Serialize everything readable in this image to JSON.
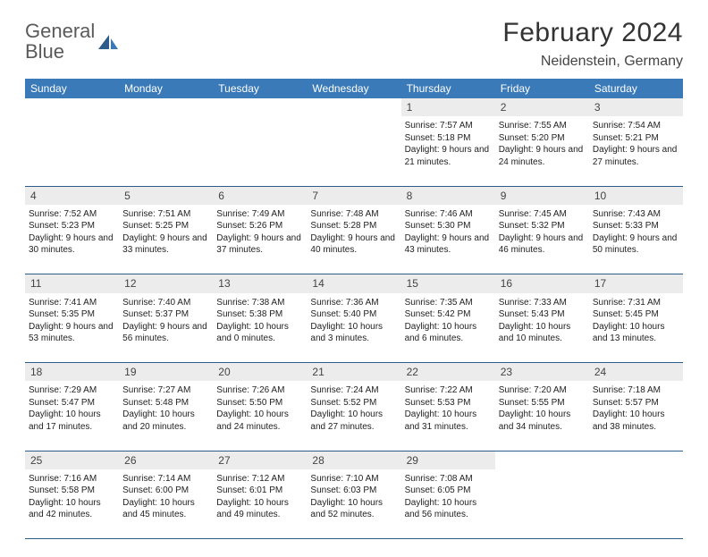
{
  "logo": {
    "word1": "General",
    "word2": "Blue"
  },
  "title": "February 2024",
  "location": "Neidenstein, Germany",
  "columns": [
    "Sunday",
    "Monday",
    "Tuesday",
    "Wednesday",
    "Thursday",
    "Friday",
    "Saturday"
  ],
  "colors": {
    "header_bg": "#3a7ab8",
    "header_text": "#ffffff",
    "daynum_bg": "#ececec",
    "rule": "#2e5c8a",
    "text": "#222222",
    "logo_gray": "#5a5a5a",
    "logo_blue": "#3a7ab8",
    "page_bg": "#ffffff"
  },
  "fonts": {
    "title_pt": 30,
    "location_pt": 16,
    "header_pt": 12,
    "daynum_pt": 12,
    "cell_pt": 10
  },
  "weeks": [
    [
      null,
      null,
      null,
      null,
      {
        "n": "1",
        "sr": "7:57 AM",
        "ss": "5:18 PM",
        "dl": "9 hours and 21 minutes."
      },
      {
        "n": "2",
        "sr": "7:55 AM",
        "ss": "5:20 PM",
        "dl": "9 hours and 24 minutes."
      },
      {
        "n": "3",
        "sr": "7:54 AM",
        "ss": "5:21 PM",
        "dl": "9 hours and 27 minutes."
      }
    ],
    [
      {
        "n": "4",
        "sr": "7:52 AM",
        "ss": "5:23 PM",
        "dl": "9 hours and 30 minutes."
      },
      {
        "n": "5",
        "sr": "7:51 AM",
        "ss": "5:25 PM",
        "dl": "9 hours and 33 minutes."
      },
      {
        "n": "6",
        "sr": "7:49 AM",
        "ss": "5:26 PM",
        "dl": "9 hours and 37 minutes."
      },
      {
        "n": "7",
        "sr": "7:48 AM",
        "ss": "5:28 PM",
        "dl": "9 hours and 40 minutes."
      },
      {
        "n": "8",
        "sr": "7:46 AM",
        "ss": "5:30 PM",
        "dl": "9 hours and 43 minutes."
      },
      {
        "n": "9",
        "sr": "7:45 AM",
        "ss": "5:32 PM",
        "dl": "9 hours and 46 minutes."
      },
      {
        "n": "10",
        "sr": "7:43 AM",
        "ss": "5:33 PM",
        "dl": "9 hours and 50 minutes."
      }
    ],
    [
      {
        "n": "11",
        "sr": "7:41 AM",
        "ss": "5:35 PM",
        "dl": "9 hours and 53 minutes."
      },
      {
        "n": "12",
        "sr": "7:40 AM",
        "ss": "5:37 PM",
        "dl": "9 hours and 56 minutes."
      },
      {
        "n": "13",
        "sr": "7:38 AM",
        "ss": "5:38 PM",
        "dl": "10 hours and 0 minutes."
      },
      {
        "n": "14",
        "sr": "7:36 AM",
        "ss": "5:40 PM",
        "dl": "10 hours and 3 minutes."
      },
      {
        "n": "15",
        "sr": "7:35 AM",
        "ss": "5:42 PM",
        "dl": "10 hours and 6 minutes."
      },
      {
        "n": "16",
        "sr": "7:33 AM",
        "ss": "5:43 PM",
        "dl": "10 hours and 10 minutes."
      },
      {
        "n": "17",
        "sr": "7:31 AM",
        "ss": "5:45 PM",
        "dl": "10 hours and 13 minutes."
      }
    ],
    [
      {
        "n": "18",
        "sr": "7:29 AM",
        "ss": "5:47 PM",
        "dl": "10 hours and 17 minutes."
      },
      {
        "n": "19",
        "sr": "7:27 AM",
        "ss": "5:48 PM",
        "dl": "10 hours and 20 minutes."
      },
      {
        "n": "20",
        "sr": "7:26 AM",
        "ss": "5:50 PM",
        "dl": "10 hours and 24 minutes."
      },
      {
        "n": "21",
        "sr": "7:24 AM",
        "ss": "5:52 PM",
        "dl": "10 hours and 27 minutes."
      },
      {
        "n": "22",
        "sr": "7:22 AM",
        "ss": "5:53 PM",
        "dl": "10 hours and 31 minutes."
      },
      {
        "n": "23",
        "sr": "7:20 AM",
        "ss": "5:55 PM",
        "dl": "10 hours and 34 minutes."
      },
      {
        "n": "24",
        "sr": "7:18 AM",
        "ss": "5:57 PM",
        "dl": "10 hours and 38 minutes."
      }
    ],
    [
      {
        "n": "25",
        "sr": "7:16 AM",
        "ss": "5:58 PM",
        "dl": "10 hours and 42 minutes."
      },
      {
        "n": "26",
        "sr": "7:14 AM",
        "ss": "6:00 PM",
        "dl": "10 hours and 45 minutes."
      },
      {
        "n": "27",
        "sr": "7:12 AM",
        "ss": "6:01 PM",
        "dl": "10 hours and 49 minutes."
      },
      {
        "n": "28",
        "sr": "7:10 AM",
        "ss": "6:03 PM",
        "dl": "10 hours and 52 minutes."
      },
      {
        "n": "29",
        "sr": "7:08 AM",
        "ss": "6:05 PM",
        "dl": "10 hours and 56 minutes."
      },
      null,
      null
    ]
  ]
}
